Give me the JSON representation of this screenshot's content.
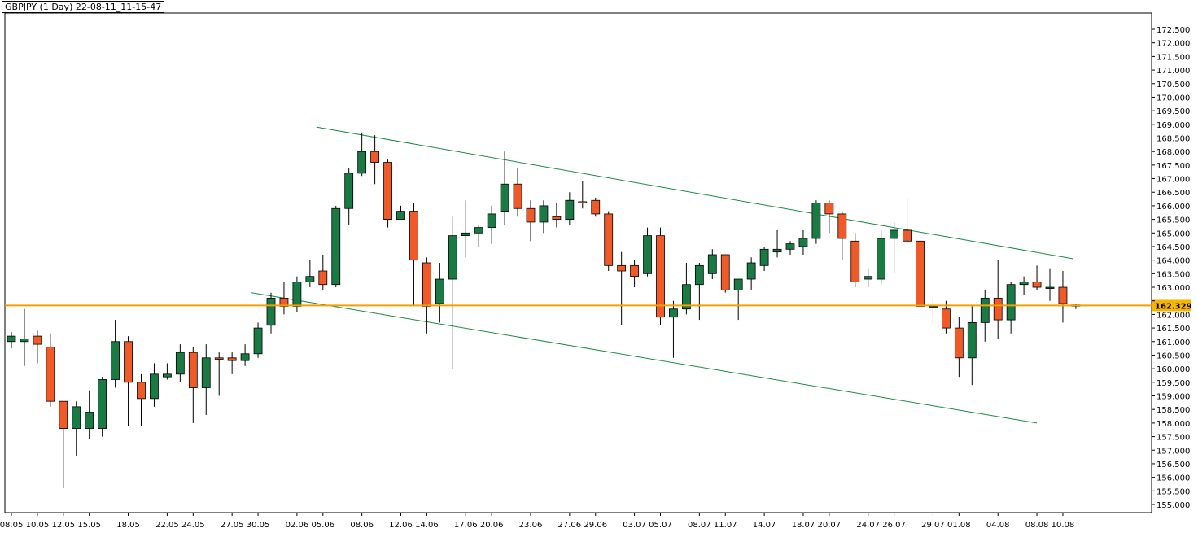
{
  "header": {
    "title": "GBPJPY (1 Day) 22-08-11_11-15-47"
  },
  "colors": {
    "bull": "#1a7a44",
    "bear": "#f05a28",
    "wick": "#000000",
    "trend": "#1a8a4a",
    "price_line": "#f0a000",
    "price_badge": "#f7b500"
  },
  "current_price": {
    "label": "162.329",
    "value": 162.329
  },
  "chart_data": {
    "type": "candlestick",
    "title": "GBPJPY (1 Day)",
    "ylim": [
      154.7,
      173.1
    ],
    "y_ticks": [
      "155.000",
      "155.500",
      "156.000",
      "156.500",
      "157.000",
      "157.500",
      "158.000",
      "158.500",
      "159.000",
      "159.500",
      "160.000",
      "160.500",
      "161.000",
      "161.500",
      "162.000",
      "162.500",
      "163.000",
      "163.500",
      "164.000",
      "164.500",
      "165.000",
      "165.500",
      "166.000",
      "166.500",
      "167.000",
      "167.500",
      "168.000",
      "168.500",
      "169.000",
      "169.500",
      "170.000",
      "170.500",
      "171.000",
      "171.500",
      "172.000",
      "172.500"
    ],
    "x_tick_labels": [
      {
        "label": "08.05",
        "i": 0
      },
      {
        "label": "10.05",
        "i": 2
      },
      {
        "label": "12.05",
        "i": 4
      },
      {
        "label": "15.05",
        "i": 6
      },
      {
        "label": "18.05",
        "i": 9
      },
      {
        "label": "22.05",
        "i": 12
      },
      {
        "label": "24.05",
        "i": 14
      },
      {
        "label": "27.05",
        "i": 17
      },
      {
        "label": "30.05",
        "i": 19
      },
      {
        "label": "02.06",
        "i": 22
      },
      {
        "label": "05.06",
        "i": 24
      },
      {
        "label": "08.06",
        "i": 27
      },
      {
        "label": "12.06",
        "i": 30
      },
      {
        "label": "14.06",
        "i": 32
      },
      {
        "label": "17.06",
        "i": 35
      },
      {
        "label": "20.06",
        "i": 37
      },
      {
        "label": "23.06",
        "i": 40
      },
      {
        "label": "27.06",
        "i": 43
      },
      {
        "label": "29.06",
        "i": 45
      },
      {
        "label": "03.07",
        "i": 48
      },
      {
        "label": "05.07",
        "i": 50
      },
      {
        "label": "08.07",
        "i": 53
      },
      {
        "label": "11.07",
        "i": 55
      },
      {
        "label": "14.07",
        "i": 58
      },
      {
        "label": "18.07",
        "i": 61
      },
      {
        "label": "20.07",
        "i": 63
      },
      {
        "label": "24.07",
        "i": 66
      },
      {
        "label": "26.07",
        "i": 68
      },
      {
        "label": "29.07",
        "i": 71
      },
      {
        "label": "01.08",
        "i": 73
      },
      {
        "label": "04.08",
        "i": 76
      },
      {
        "label": "08.08",
        "i": 79
      },
      {
        "label": "10.08",
        "i": 81
      }
    ],
    "candles": [
      {
        "o": 161.0,
        "h": 161.35,
        "l": 160.75,
        "c": 161.2
      },
      {
        "o": 161.0,
        "h": 162.2,
        "l": 160.1,
        "c": 161.1
      },
      {
        "o": 161.2,
        "h": 161.4,
        "l": 160.2,
        "c": 160.9
      },
      {
        "o": 160.8,
        "h": 161.3,
        "l": 158.6,
        "c": 158.8
      },
      {
        "o": 158.8,
        "h": 158.8,
        "l": 155.6,
        "c": 157.8
      },
      {
        "o": 157.8,
        "h": 158.8,
        "l": 156.8,
        "c": 158.6
      },
      {
        "o": 157.8,
        "h": 159.2,
        "l": 157.4,
        "c": 158.4
      },
      {
        "o": 157.8,
        "h": 159.7,
        "l": 157.5,
        "c": 159.6
      },
      {
        "o": 159.6,
        "h": 161.8,
        "l": 159.3,
        "c": 161.0
      },
      {
        "o": 161.0,
        "h": 161.2,
        "l": 157.9,
        "c": 159.5
      },
      {
        "o": 159.5,
        "h": 159.8,
        "l": 157.9,
        "c": 158.9
      },
      {
        "o": 158.9,
        "h": 160.2,
        "l": 158.6,
        "c": 159.8
      },
      {
        "o": 159.7,
        "h": 160.2,
        "l": 159.6,
        "c": 159.8
      },
      {
        "o": 159.8,
        "h": 160.9,
        "l": 159.5,
        "c": 160.6
      },
      {
        "o": 160.6,
        "h": 160.8,
        "l": 158.0,
        "c": 159.3
      },
      {
        "o": 159.3,
        "h": 160.9,
        "l": 158.3,
        "c": 160.4
      },
      {
        "o": 160.4,
        "h": 160.6,
        "l": 159.0,
        "c": 160.35
      },
      {
        "o": 160.4,
        "h": 160.6,
        "l": 159.8,
        "c": 160.3
      },
      {
        "o": 160.3,
        "h": 160.9,
        "l": 160.1,
        "c": 160.55
      },
      {
        "o": 160.55,
        "h": 161.7,
        "l": 160.4,
        "c": 161.5
      },
      {
        "o": 161.6,
        "h": 162.8,
        "l": 161.3,
        "c": 162.6
      },
      {
        "o": 162.6,
        "h": 163.2,
        "l": 162.0,
        "c": 162.3
      },
      {
        "o": 162.3,
        "h": 163.4,
        "l": 162.1,
        "c": 163.2
      },
      {
        "o": 163.2,
        "h": 164.0,
        "l": 163.0,
        "c": 163.4
      },
      {
        "o": 163.6,
        "h": 164.2,
        "l": 162.9,
        "c": 163.1
      },
      {
        "o": 163.1,
        "h": 166.0,
        "l": 163.0,
        "c": 165.9
      },
      {
        "o": 165.9,
        "h": 167.4,
        "l": 165.3,
        "c": 167.2
      },
      {
        "o": 167.2,
        "h": 168.7,
        "l": 167.1,
        "c": 168.0
      },
      {
        "o": 168.0,
        "h": 168.6,
        "l": 166.8,
        "c": 167.6
      },
      {
        "o": 167.6,
        "h": 167.7,
        "l": 165.2,
        "c": 165.5
      },
      {
        "o": 165.5,
        "h": 166.0,
        "l": 165.5,
        "c": 165.8
      },
      {
        "o": 165.8,
        "h": 166.1,
        "l": 162.3,
        "c": 164.0
      },
      {
        "o": 163.9,
        "h": 164.1,
        "l": 161.3,
        "c": 162.3
      },
      {
        "o": 162.4,
        "h": 163.9,
        "l": 161.7,
        "c": 163.3
      },
      {
        "o": 163.3,
        "h": 165.6,
        "l": 160.0,
        "c": 164.9
      },
      {
        "o": 164.9,
        "h": 166.2,
        "l": 164.1,
        "c": 165.0
      },
      {
        "o": 165.0,
        "h": 165.3,
        "l": 164.5,
        "c": 165.2
      },
      {
        "o": 165.2,
        "h": 166.0,
        "l": 164.6,
        "c": 165.7
      },
      {
        "o": 165.8,
        "h": 168.0,
        "l": 165.3,
        "c": 166.8
      },
      {
        "o": 166.8,
        "h": 167.4,
        "l": 165.6,
        "c": 165.9
      },
      {
        "o": 165.9,
        "h": 166.2,
        "l": 164.7,
        "c": 165.4
      },
      {
        "o": 165.4,
        "h": 166.2,
        "l": 165.0,
        "c": 166.0
      },
      {
        "o": 165.6,
        "h": 166.1,
        "l": 165.2,
        "c": 165.5
      },
      {
        "o": 165.5,
        "h": 166.5,
        "l": 165.3,
        "c": 166.2
      },
      {
        "o": 166.15,
        "h": 166.9,
        "l": 165.9,
        "c": 166.1
      },
      {
        "o": 166.2,
        "h": 166.3,
        "l": 165.6,
        "c": 165.7
      },
      {
        "o": 165.7,
        "h": 165.8,
        "l": 163.6,
        "c": 163.8
      },
      {
        "o": 163.8,
        "h": 164.3,
        "l": 161.6,
        "c": 163.6
      },
      {
        "o": 163.8,
        "h": 164.0,
        "l": 163.0,
        "c": 163.4
      },
      {
        "o": 163.5,
        "h": 165.2,
        "l": 163.4,
        "c": 164.9
      },
      {
        "o": 164.9,
        "h": 165.2,
        "l": 161.6,
        "c": 161.9
      },
      {
        "o": 161.9,
        "h": 162.5,
        "l": 160.4,
        "c": 162.2
      },
      {
        "o": 162.2,
        "h": 163.9,
        "l": 162.0,
        "c": 163.1
      },
      {
        "o": 163.1,
        "h": 163.9,
        "l": 161.8,
        "c": 163.8
      },
      {
        "o": 163.5,
        "h": 164.4,
        "l": 163.3,
        "c": 164.2
      },
      {
        "o": 164.2,
        "h": 164.2,
        "l": 162.8,
        "c": 162.9
      },
      {
        "o": 162.9,
        "h": 163.2,
        "l": 161.8,
        "c": 163.3
      },
      {
        "o": 163.3,
        "h": 164.1,
        "l": 162.9,
        "c": 163.9
      },
      {
        "o": 163.8,
        "h": 164.5,
        "l": 163.6,
        "c": 164.4
      },
      {
        "o": 164.3,
        "h": 165.1,
        "l": 164.1,
        "c": 164.4
      },
      {
        "o": 164.4,
        "h": 164.7,
        "l": 164.2,
        "c": 164.6
      },
      {
        "o": 164.5,
        "h": 165.1,
        "l": 164.2,
        "c": 164.8
      },
      {
        "o": 164.8,
        "h": 166.2,
        "l": 164.6,
        "c": 166.1
      },
      {
        "o": 166.1,
        "h": 166.2,
        "l": 165.0,
        "c": 165.7
      },
      {
        "o": 165.7,
        "h": 165.8,
        "l": 164.0,
        "c": 164.8
      },
      {
        "o": 164.7,
        "h": 165.0,
        "l": 163.0,
        "c": 163.2
      },
      {
        "o": 163.3,
        "h": 163.7,
        "l": 163.0,
        "c": 163.4
      },
      {
        "o": 163.3,
        "h": 165.1,
        "l": 163.1,
        "c": 164.8
      },
      {
        "o": 164.8,
        "h": 165.4,
        "l": 163.5,
        "c": 165.1
      },
      {
        "o": 165.1,
        "h": 166.3,
        "l": 164.6,
        "c": 164.7
      },
      {
        "o": 164.7,
        "h": 165.2,
        "l": 162.3,
        "c": 162.3
      },
      {
        "o": 162.3,
        "h": 162.6,
        "l": 161.6,
        "c": 162.3
      },
      {
        "o": 162.2,
        "h": 162.5,
        "l": 161.3,
        "c": 161.5
      },
      {
        "o": 161.5,
        "h": 161.9,
        "l": 159.7,
        "c": 160.4
      },
      {
        "o": 160.4,
        "h": 162.3,
        "l": 159.4,
        "c": 161.7
      },
      {
        "o": 161.7,
        "h": 162.9,
        "l": 161.0,
        "c": 162.6
      },
      {
        "o": 162.6,
        "h": 164.0,
        "l": 161.1,
        "c": 161.8
      },
      {
        "o": 161.8,
        "h": 163.2,
        "l": 161.3,
        "c": 163.1
      },
      {
        "o": 163.1,
        "h": 163.4,
        "l": 162.7,
        "c": 163.2
      },
      {
        "o": 163.2,
        "h": 163.8,
        "l": 162.9,
        "c": 163.0
      },
      {
        "o": 163.0,
        "h": 163.7,
        "l": 162.5,
        "c": 163.0
      },
      {
        "o": 163.0,
        "h": 163.6,
        "l": 161.7,
        "c": 162.4
      },
      {
        "o": 162.35,
        "h": 162.4,
        "l": 162.2,
        "c": 162.33
      }
    ],
    "trendlines": [
      {
        "i1": 23.5,
        "y1": 168.9,
        "i2": 81.8,
        "y2": 164.05
      },
      {
        "i1": 18.5,
        "y1": 162.8,
        "i2": 79.0,
        "y2": 158.0
      }
    ]
  }
}
